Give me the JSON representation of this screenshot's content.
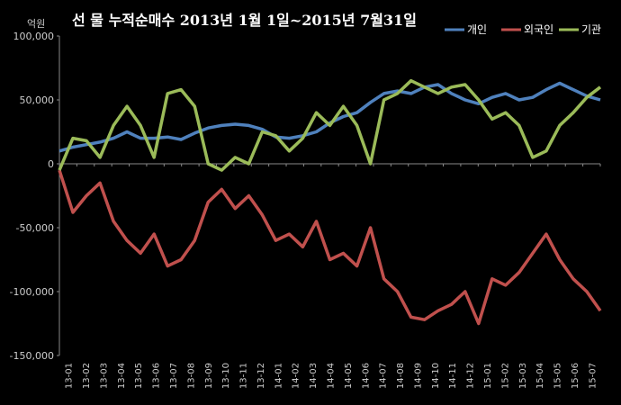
{
  "chart_data": {
    "type": "line",
    "title": "선 물 누적순매수 2013년 1월 1일~2015년 7월31일",
    "unit_label": "억원",
    "ylim": [
      -150000,
      100000
    ],
    "y_ticks": [
      -150000,
      -100000,
      -50000,
      0,
      50000,
      100000
    ],
    "y_tick_labels": [
      "-150,000",
      "-100,000",
      "-50,000",
      "0",
      "50,000",
      "100,000"
    ],
    "x_tick_labels": [
      "13-01",
      "13-02",
      "13-03",
      "13-04",
      "13-05",
      "13-06",
      "13-07",
      "13-08",
      "13-09",
      "13-10",
      "13-11",
      "13-12",
      "14-01",
      "14-02",
      "14-03",
      "14-04",
      "14-05",
      "14-06",
      "14-07",
      "14-08",
      "14-09",
      "14-10",
      "14-11",
      "14-12",
      "15-01",
      "15-02",
      "15-03",
      "15-04",
      "15-05",
      "15-06",
      "15-07"
    ],
    "grid": false,
    "legend_position": "top-right",
    "series": [
      {
        "name": "개인",
        "color": "#4f81bd",
        "values": [
          10000,
          13000,
          15000,
          17000,
          20000,
          25000,
          20000,
          20000,
          21000,
          19000,
          24000,
          28000,
          30000,
          31000,
          30000,
          27000,
          21000,
          20000,
          22000,
          25000,
          32000,
          37000,
          40000,
          48000,
          55000,
          57000,
          55000,
          60000,
          62000,
          55000,
          50000,
          47000,
          52000,
          55000,
          50000,
          52000,
          58000,
          63000,
          58000,
          53000,
          50000
        ]
      },
      {
        "name": "외국인",
        "color": "#c0504d",
        "values": [
          -5000,
          -38000,
          -25000,
          -15000,
          -45000,
          -60000,
          -70000,
          -55000,
          -80000,
          -75000,
          -60000,
          -30000,
          -20000,
          -35000,
          -25000,
          -40000,
          -60000,
          -55000,
          -65000,
          -45000,
          -75000,
          -70000,
          -80000,
          -50000,
          -90000,
          -100000,
          -120000,
          -122000,
          -115000,
          -110000,
          -100000,
          -125000,
          -90000,
          -95000,
          -85000,
          -70000,
          -55000,
          -75000,
          -90000,
          -100000,
          -115000
        ]
      },
      {
        "name": "기관",
        "color": "#9bbb59",
        "values": [
          -5000,
          20000,
          18000,
          5000,
          30000,
          45000,
          30000,
          5000,
          55000,
          58000,
          45000,
          0,
          -5000,
          5000,
          0,
          25000,
          22000,
          10000,
          20000,
          40000,
          30000,
          45000,
          30000,
          0,
          50000,
          55000,
          65000,
          60000,
          55000,
          60000,
          62000,
          50000,
          35000,
          40000,
          30000,
          5000,
          10000,
          30000,
          40000,
          52000,
          60000
        ]
      }
    ]
  }
}
